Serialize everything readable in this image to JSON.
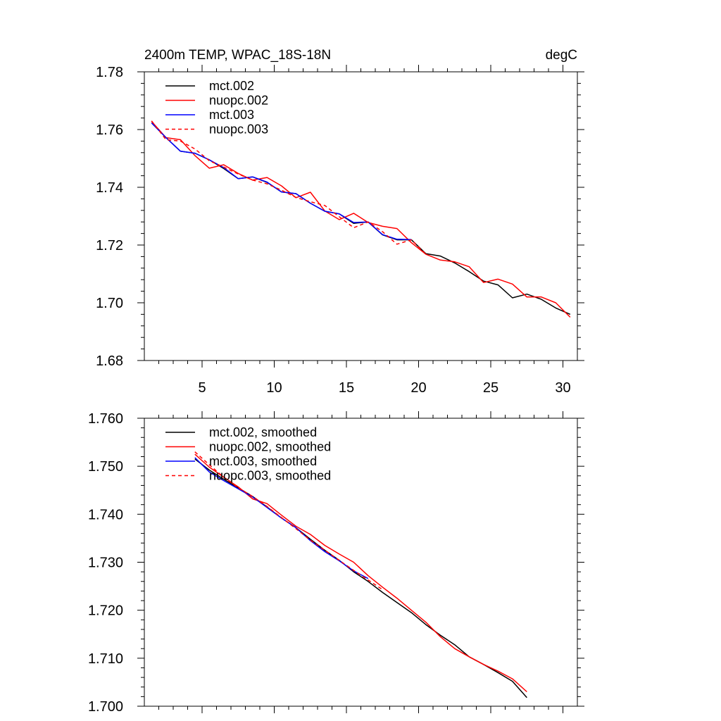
{
  "chart_data": [
    {
      "id": "top",
      "type": "line",
      "title_left": "2400m TEMP, WPAC_18S-18N",
      "title_right": "degC",
      "xlim": [
        1,
        31
      ],
      "ylim": [
        1.68,
        1.78
      ],
      "x_major_ticks": [
        5,
        10,
        15,
        20,
        25,
        30
      ],
      "x_tick_labels": [
        "5",
        "10",
        "15",
        "20",
        "25",
        "30"
      ],
      "y_major_ticks": [
        1.68,
        1.7,
        1.72,
        1.74,
        1.76,
        1.78
      ],
      "y_tick_labels": [
        "1.68",
        "1.70",
        "1.72",
        "1.74",
        "1.76",
        "1.78"
      ],
      "legend": [
        "mct.002",
        "nuopc.002",
        "mct.003",
        "nuopc.003"
      ],
      "series": [
        {
          "name": "mct.002",
          "color": "#000000",
          "dash": "solid",
          "x": [
            1.5,
            2.5,
            3.5,
            4.5,
            5.5,
            6.5,
            7.5,
            8.5,
            9.5,
            10.5,
            11.5,
            12.5,
            13.5,
            14.5,
            15.5,
            16.5,
            17.5,
            18.5,
            19.5,
            20.5,
            21.5,
            22.5,
            23.5,
            24.5,
            25.5,
            26.5,
            27.5,
            28.5,
            29.5,
            30.5
          ],
          "y": [
            1.7623,
            1.7572,
            1.7525,
            1.7518,
            1.7495,
            1.7465,
            1.743,
            1.7436,
            1.7417,
            1.7384,
            1.7378,
            1.7345,
            1.7317,
            1.7308,
            1.7275,
            1.728,
            1.7235,
            1.7218,
            1.7218,
            1.717,
            1.7162,
            1.7138,
            1.7108,
            1.7075,
            1.7062,
            1.7017,
            1.703,
            1.7012,
            1.6982,
            1.696
          ]
        },
        {
          "name": "nuopc.002",
          "color": "#ff0000",
          "dash": "solid",
          "x": [
            1.5,
            2.5,
            3.5,
            4.5,
            5.5,
            6.5,
            7.5,
            8.5,
            9.5,
            10.5,
            11.5,
            12.5,
            13.5,
            14.5,
            15.5,
            16.5,
            17.5,
            18.5,
            19.5,
            20.5,
            21.5,
            22.5,
            23.5,
            24.5,
            25.5,
            26.5,
            27.5,
            28.5,
            29.5,
            30.5
          ],
          "y": [
            1.7628,
            1.7572,
            1.7565,
            1.751,
            1.7466,
            1.7478,
            1.7448,
            1.7425,
            1.7434,
            1.7405,
            1.7364,
            1.7383,
            1.7318,
            1.7288,
            1.731,
            1.7278,
            1.7265,
            1.7257,
            1.7208,
            1.7168,
            1.7148,
            1.7142,
            1.7125,
            1.707,
            1.7082,
            1.7065,
            1.702,
            1.702,
            1.7,
            1.695
          ]
        },
        {
          "name": "mct.003",
          "color": "#0000ff",
          "dash": "solid",
          "x": [
            1.5,
            2.5,
            3.5,
            4.5,
            5.5,
            6.5,
            7.5,
            8.5,
            9.5,
            10.5,
            11.5,
            12.5,
            13.5,
            14.5,
            15.5,
            16.5,
            17.5,
            18.5,
            19.5
          ],
          "y": [
            1.7623,
            1.7572,
            1.7525,
            1.7518,
            1.7495,
            1.7468,
            1.743,
            1.7436,
            1.7418,
            1.7384,
            1.7378,
            1.7345,
            1.7317,
            1.7308,
            1.7278,
            1.728,
            1.7236,
            1.722,
            1.7219
          ]
        },
        {
          "name": "nuopc.003",
          "color": "#ff0000",
          "dash": "dashed",
          "x": [
            1.5,
            2.5,
            3.5,
            4.5,
            5.5,
            6.5,
            7.5,
            8.5,
            9.5,
            10.5,
            11.5,
            12.5,
            13.5,
            14.5,
            15.5,
            16.5,
            17.5,
            18.5,
            19.5,
            20.5
          ],
          "y": [
            1.763,
            1.7565,
            1.756,
            1.7533,
            1.7492,
            1.747,
            1.7446,
            1.7425,
            1.7412,
            1.739,
            1.7365,
            1.735,
            1.7337,
            1.7298,
            1.726,
            1.728,
            1.7246,
            1.7203,
            1.7218,
            1.7168
          ]
        }
      ]
    },
    {
      "id": "bottom",
      "type": "line",
      "xlim": [
        1,
        31
      ],
      "ylim": [
        1.7,
        1.76
      ],
      "x_major_ticks": [
        5,
        10,
        15,
        20,
        25,
        30
      ],
      "y_major_ticks": [
        1.7,
        1.71,
        1.72,
        1.73,
        1.74,
        1.75,
        1.76
      ],
      "y_tick_labels": [
        "1.700",
        "1.710",
        "1.720",
        "1.730",
        "1.740",
        "1.750",
        "1.760"
      ],
      "legend": [
        "mct.002, smoothed",
        "nuopc.002, smoothed",
        "mct.003, smoothed",
        "nuopc.003, smoothed"
      ],
      "series": [
        {
          "name": "mct.002, smoothed",
          "color": "#000000",
          "dash": "solid",
          "x": [
            4.5,
            5.5,
            6.5,
            7.5,
            8.5,
            9.5,
            10.5,
            11.5,
            12.5,
            13.5,
            14.5,
            15.5,
            16.5,
            17.5,
            18.5,
            19.5,
            20.5,
            21.5,
            22.5,
            23.5,
            24.5,
            25.5,
            26.5,
            27.5
          ],
          "y": [
            1.7515,
            1.7492,
            1.7473,
            1.7455,
            1.7437,
            1.7415,
            1.7392,
            1.7372,
            1.7348,
            1.7325,
            1.7304,
            1.728,
            1.726,
            1.7237,
            1.7216,
            1.7195,
            1.717,
            1.7148,
            1.7128,
            1.7103,
            1.7087,
            1.707,
            1.7052,
            1.7018
          ]
        },
        {
          "name": "nuopc.002, smoothed",
          "color": "#ff0000",
          "dash": "solid",
          "x": [
            4.5,
            5.5,
            6.5,
            7.5,
            8.5,
            9.5,
            10.5,
            11.5,
            12.5,
            13.5,
            14.5,
            15.5,
            16.5,
            17.5,
            18.5,
            19.5,
            20.5,
            21.5,
            22.5,
            23.5,
            24.5,
            25.5,
            26.5,
            27.5
          ],
          "y": [
            1.7525,
            1.7498,
            1.7477,
            1.7457,
            1.7432,
            1.7422,
            1.7398,
            1.7375,
            1.7358,
            1.7335,
            1.7317,
            1.73,
            1.7272,
            1.7248,
            1.7225,
            1.72,
            1.7175,
            1.7145,
            1.712,
            1.7103,
            1.7087,
            1.7073,
            1.7057,
            1.703
          ]
        },
        {
          "name": "mct.003, smoothed",
          "color": "#0000ff",
          "dash": "solid",
          "x": [
            4.5,
            5.5,
            6.5,
            7.5,
            8.5,
            9.5,
            10.5,
            11.5,
            12.5,
            13.5,
            14.5,
            15.5,
            16.5
          ],
          "y": [
            1.7518,
            1.7488,
            1.747,
            1.7453,
            1.7436,
            1.7414,
            1.7392,
            1.7372,
            1.7345,
            1.7322,
            1.7303,
            1.7282,
            1.7266
          ]
        },
        {
          "name": "nuopc.003, smoothed",
          "color": "#ff0000",
          "dash": "dashed",
          "x": [
            4.5,
            5.5,
            6.5,
            7.5,
            8.5,
            9.5,
            10.5,
            11.5,
            12.5,
            13.5,
            14.5,
            15.5,
            16.5,
            17.5
          ],
          "y": [
            1.753,
            1.7503,
            1.7477,
            1.7455,
            1.7437,
            1.7416,
            1.7393,
            1.737,
            1.7346,
            1.7325,
            1.7304,
            1.7283,
            1.7263,
            1.7243
          ]
        }
      ]
    }
  ]
}
